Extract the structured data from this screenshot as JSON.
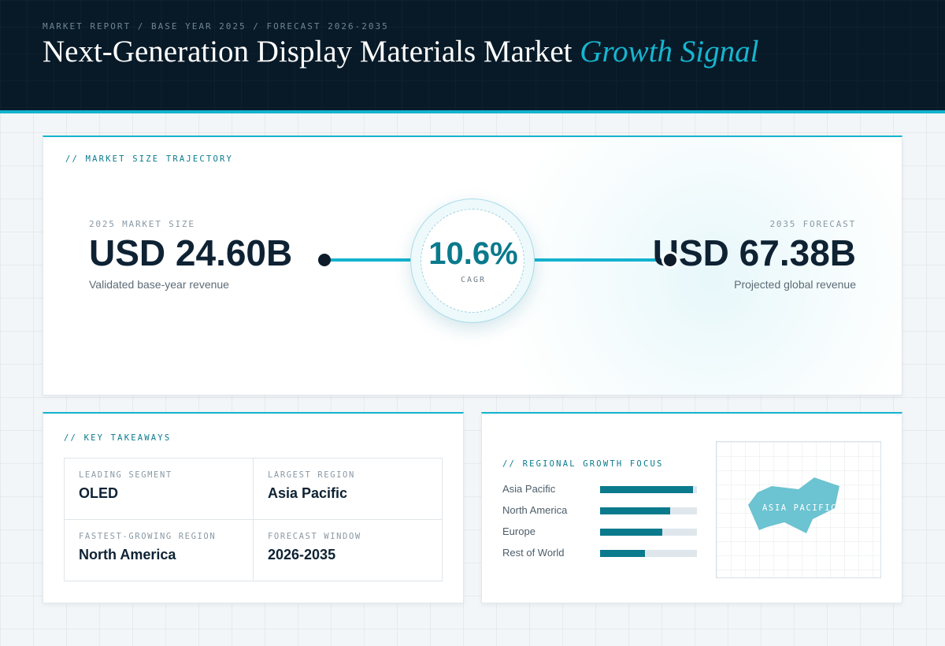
{
  "header": {
    "eyebrow": "MARKET REPORT / BASE YEAR 2025 / FORECAST 2026-2035",
    "title_main": "Next-Generation Display Materials Market",
    "title_accent": "Growth Signal"
  },
  "trajectory": {
    "section_label": "// MARKET SIZE TRAJECTORY",
    "start": {
      "caption": "2025 MARKET SIZE",
      "value": "USD 24.60B",
      "sub": "Validated base-year revenue"
    },
    "end": {
      "caption": "2035 FORECAST",
      "value": "USD 67.38B",
      "sub": "Projected global revenue"
    },
    "cagr": {
      "value": "10.6%",
      "label": "CAGR"
    }
  },
  "takeaways": {
    "section_label": "// KEY TAKEAWAYS",
    "items": [
      {
        "caption": "LEADING SEGMENT",
        "value": "OLED"
      },
      {
        "caption": "LARGEST REGION",
        "value": "Asia Pacific"
      },
      {
        "caption": "FASTEST-GROWING REGION",
        "value": "North America"
      },
      {
        "caption": "FORECAST WINDOW",
        "value": "2026-2035"
      }
    ]
  },
  "regional": {
    "section_label": "// REGIONAL GROWTH FOCUS",
    "bars": [
      {
        "label": "Asia Pacific",
        "level": 0.96
      },
      {
        "label": "North America",
        "level": 0.72
      },
      {
        "label": "Europe",
        "level": 0.64
      },
      {
        "label": "Rest of World",
        "level": 0.46
      }
    ],
    "map_label": "ASIA PACIFIC",
    "colors": {
      "accent": "#14b3cf",
      "bar": "#0a7a8c",
      "map_fill": "#6cc3d1"
    }
  }
}
